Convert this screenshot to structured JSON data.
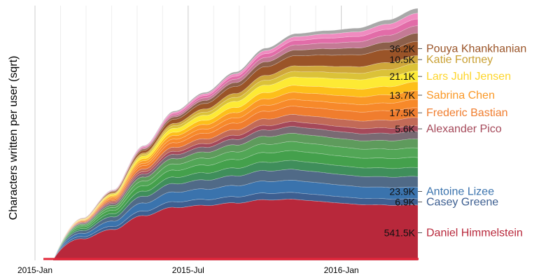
{
  "chart_data": {
    "type": "area",
    "stacked": true,
    "title": "",
    "xlabel": "",
    "ylabel": "Characters written per user (sqrt)",
    "x_ticks": [
      "2015-Jan",
      "2015-Jul",
      "2016-Jan"
    ],
    "x_tick_months": [
      0,
      6,
      12
    ],
    "x_range_months": [
      0,
      15.0
    ],
    "y_scale": "sqrt",
    "grid": true,
    "total_k": [
      0,
      40,
      110,
      290,
      490,
      620,
      780,
      990,
      1130,
      1160,
      1185,
      1270,
      1395
    ],
    "series": [
      {
        "name": "Daniel Himmelstein",
        "value_label": "541.5K",
        "value_k": 541.5,
        "color": "#b8283b",
        "labeled": true
      },
      {
        "name": "Casey Greene",
        "value_label": "6.9K",
        "value_k": 6.9,
        "color": "#3d5f91",
        "labeled": true
      },
      {
        "name": "Antoine Lizee",
        "value_label": "23.9K",
        "value_k": 23.9,
        "color": "#3a73ad",
        "labeled": true
      },
      {
        "name": "",
        "value_label": "",
        "value_k": 20,
        "color": "#506a87",
        "labeled": false
      },
      {
        "name": "",
        "value_label": "",
        "value_k": 14,
        "color": "#3f8e5b",
        "labeled": false
      },
      {
        "name": "",
        "value_label": "",
        "value_k": 18,
        "color": "#44a04c",
        "labeled": false
      },
      {
        "name": "",
        "value_label": "",
        "value_k": 16,
        "color": "#52a656",
        "labeled": false
      },
      {
        "name": "",
        "value_label": "",
        "value_k": 14,
        "color": "#5e9b5c",
        "labeled": false
      },
      {
        "name": "",
        "value_label": "",
        "value_k": 10,
        "color": "#7a6a73",
        "labeled": false
      },
      {
        "name": "Alexander Pico",
        "value_label": "5.6K",
        "value_k": 5.6,
        "color": "#a5495a",
        "labeled": true
      },
      {
        "name": "",
        "value_label": "",
        "value_k": 12,
        "color": "#c26a57",
        "labeled": false
      },
      {
        "name": "Frederic Bastian",
        "value_label": "17.5K",
        "value_k": 17.5,
        "color": "#f07d2e",
        "labeled": true
      },
      {
        "name": "",
        "value_label": "",
        "value_k": 12,
        "color": "#f7892a",
        "labeled": false
      },
      {
        "name": "Sabrina Chen",
        "value_label": "13.7K",
        "value_k": 13.7,
        "color": "#fa9826",
        "labeled": true
      },
      {
        "name": "",
        "value_label": "",
        "value_k": 14,
        "color": "#fdbf1a",
        "labeled": false
      },
      {
        "name": "Lars Juhl Jensen",
        "value_label": "21.1K",
        "value_k": 21.1,
        "color": "#fdea34",
        "labeled": true
      },
      {
        "name": "",
        "value_label": "",
        "value_k": 10,
        "color": "#dbc238",
        "labeled": false
      },
      {
        "name": "Katie Fortney",
        "value_label": "10.5K",
        "value_k": 10.5,
        "color": "#cfa73a",
        "labeled": true
      },
      {
        "name": "Pouya Khankhanian",
        "value_label": "36.2K",
        "value_k": 36.2,
        "color": "#9a5428",
        "labeled": true
      },
      {
        "name": "",
        "value_label": "",
        "value_k": 12,
        "color": "#8c5f4a",
        "labeled": false
      },
      {
        "name": "",
        "value_label": "",
        "value_k": 10,
        "color": "#c47a95",
        "labeled": false
      },
      {
        "name": "",
        "value_label": "",
        "value_k": 8,
        "color": "#e26ca8",
        "labeled": false
      },
      {
        "name": "",
        "value_label": "",
        "value_k": 6,
        "color": "#f08bc0",
        "labeled": false
      },
      {
        "name": "",
        "value_label": "",
        "value_k": 4,
        "color": "#a9a9a9",
        "labeled": false
      }
    ],
    "label_colors": {
      "Daniel Himmelstein": "#b8283b",
      "Casey Greene": "#3d5f91",
      "Antoine Lizee": "#3a73ad",
      "Alexander Pico": "#a5495a",
      "Frederic Bastian": "#f07d2e",
      "Sabrina Chen": "#fa9826",
      "Lars Juhl Jensen": "#fdd52a",
      "Katie Fortney": "#c9a033",
      "Pouya Khankhanian": "#9a5428"
    }
  }
}
